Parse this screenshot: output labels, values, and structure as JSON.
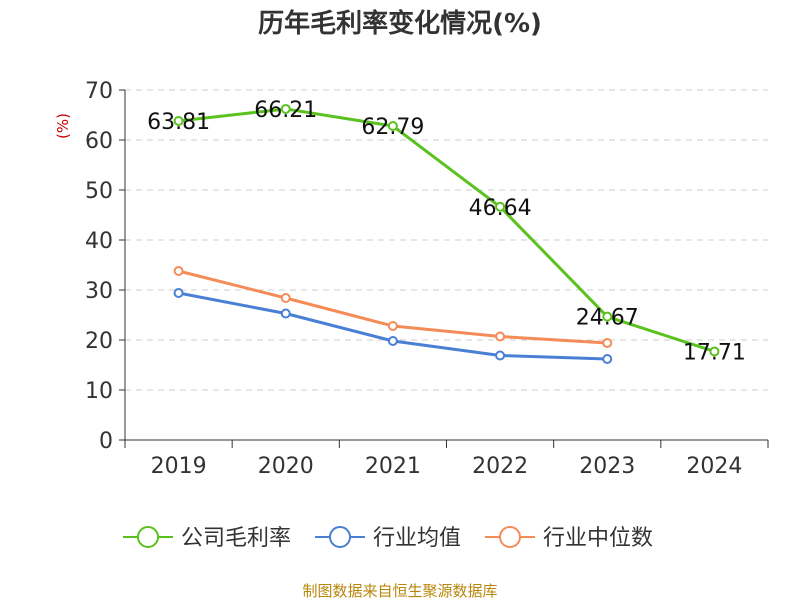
{
  "chart_data": {
    "type": "line",
    "title": "历年毛利率变化情况(%)",
    "ylabel": "(%)",
    "ylim": [
      0,
      70
    ],
    "yticks": [
      0,
      10,
      20,
      30,
      40,
      50,
      60,
      70
    ],
    "categories": [
      "2019",
      "2020",
      "2021",
      "2022",
      "2023",
      "2024"
    ],
    "grid": true,
    "legend": "bottom",
    "series": [
      {
        "name": "公司毛利率",
        "color": "#5ac11f",
        "values": [
          63.81,
          66.21,
          62.79,
          46.64,
          24.67,
          17.71
        ],
        "labels": [
          "63.81",
          "66.21",
          "62.79",
          "46.64",
          "24.67",
          "17.71"
        ]
      },
      {
        "name": "行业均值",
        "color": "#4a7fd6",
        "values": [
          29.4,
          25.3,
          19.8,
          16.9,
          16.2,
          null
        ]
      },
      {
        "name": "行业中位数",
        "color": "#f58c57",
        "values": [
          33.8,
          28.4,
          22.8,
          20.7,
          19.4,
          null
        ]
      }
    ]
  },
  "footer": {
    "source": "制图数据来自恒生聚源数据库"
  }
}
